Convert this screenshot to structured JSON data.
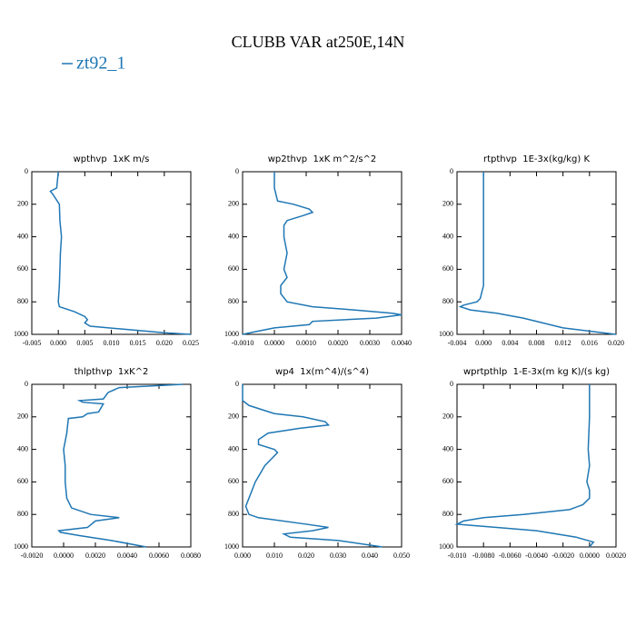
{
  "title": "CLUBB VAR at250E,14N",
  "legend": {
    "name": "zt92_1",
    "color": "#1f77b4"
  },
  "chart_data": [
    {
      "type": "line",
      "title": "wpthvp  1xK m/s",
      "color": "#1f77b4",
      "levels": [
        0,
        100,
        120,
        140,
        200,
        300,
        400,
        500,
        600,
        700,
        800,
        830,
        860,
        890,
        910,
        930,
        950,
        970,
        990,
        1000
      ],
      "values": [
        0,
        -0.0003,
        -0.0015,
        -0.001,
        0.0002,
        0.0003,
        0.0006,
        0.0004,
        0.0003,
        0.0002,
        0.0,
        0.0002,
        0.003,
        0.005,
        0.0055,
        0.005,
        0.006,
        0.013,
        0.02,
        0.025
      ],
      "xlim": [
        -0.005,
        0.025
      ],
      "xticks": [
        -0.005,
        {
          "value": 0,
          "label": "0.000"
        },
        0.005,
        {
          "value": 0.01,
          "label": "0.010"
        },
        0.015,
        {
          "value": 0.02,
          "label": "0.020"
        },
        0.025
      ],
      "ylim": [
        0,
        1000
      ],
      "yticks": [
        0,
        200,
        400,
        600,
        800,
        1000
      ],
      "y_inverted": true
    },
    {
      "type": "line",
      "title": "wp2thvp  1xK m^2/s^2",
      "color": "#1f77b4",
      "levels": [
        0,
        100,
        180,
        200,
        230,
        250,
        270,
        300,
        330,
        400,
        500,
        600,
        650,
        700,
        750,
        800,
        830,
        850,
        870,
        880,
        900,
        920,
        940,
        960,
        980,
        1000
      ],
      "values": [
        0,
        0,
        0.0001,
        0.0006,
        0.0011,
        0.0012,
        0.0009,
        0.0004,
        0.0003,
        0.0003,
        0.0004,
        0.0003,
        0.0004,
        0.0002,
        0.0002,
        0.0004,
        0.0012,
        0.0025,
        0.0037,
        0.004,
        0.0032,
        0.0012,
        0.0011,
        0.0,
        -0.0005,
        -0.001
      ],
      "xlim": [
        -0.001,
        0.004
      ],
      "xticks": [
        {
          "value": -0.001,
          "label": "-0.0010"
        },
        {
          "value": 0,
          "label": "0.0000"
        },
        {
          "value": 0.001,
          "label": "0.0010"
        },
        {
          "value": 0.002,
          "label": "0.0020"
        },
        {
          "value": 0.003,
          "label": "0.0030"
        },
        {
          "value": 0.004,
          "label": "0.0040"
        }
      ],
      "ylim": [
        0,
        1000
      ],
      "yticks": [
        0,
        200,
        400,
        600,
        800,
        1000
      ],
      "y_inverted": true
    },
    {
      "type": "line",
      "title": "rtpthvp  1E-3x(kg/kg) K",
      "color": "#1f77b4",
      "levels": [
        0,
        200,
        400,
        600,
        700,
        780,
        800,
        820,
        830,
        850,
        870,
        900,
        930,
        960,
        990,
        1000
      ],
      "values": [
        0,
        0,
        0,
        0,
        0.0,
        -0.0005,
        -0.001,
        -0.003,
        -0.0035,
        -0.002,
        0.002,
        0.006,
        0.009,
        0.012,
        0.018,
        0.02
      ],
      "xlim": [
        -0.004,
        0.02
      ],
      "xticks": [
        -0.004,
        {
          "value": 0,
          "label": "0.000"
        },
        0.004,
        0.008,
        0.012,
        0.016,
        {
          "value": 0.02,
          "label": "0.020"
        }
      ],
      "ylim": [
        0,
        1000
      ],
      "yticks": [
        0,
        200,
        400,
        600,
        800,
        1000
      ],
      "y_inverted": true
    },
    {
      "type": "line",
      "title": "thlpthvp  1xK^2",
      "color": "#1f77b4",
      "levels": [
        0,
        20,
        50,
        90,
        100,
        110,
        120,
        170,
        180,
        200,
        210,
        300,
        400,
        500,
        600,
        700,
        760,
        800,
        820,
        840,
        880,
        900,
        910,
        930,
        960,
        1000
      ],
      "values": [
        0.0075,
        0.0035,
        0.0028,
        0.0025,
        0.001,
        0.0012,
        0.0025,
        0.0022,
        0.0015,
        0.0012,
        0.0003,
        0.0002,
        0.0,
        0.0001,
        0.0001,
        0.0002,
        0.0005,
        0.0017,
        0.0035,
        0.002,
        0.0015,
        -0.0003,
        -0.0002,
        0.001,
        0.003,
        0.0052
      ],
      "xlim": [
        -0.002,
        0.008
      ],
      "xticks": [
        {
          "value": -0.002,
          "label": "-0.0020"
        },
        {
          "value": 0,
          "label": "0.0000"
        },
        {
          "value": 0.002,
          "label": "0.0020"
        },
        {
          "value": 0.004,
          "label": "0.0040"
        },
        {
          "value": 0.006,
          "label": "0.0060"
        },
        {
          "value": 0.008,
          "label": "0.0080"
        }
      ],
      "ylim": [
        0,
        1000
      ],
      "yticks": [
        0,
        200,
        400,
        600,
        800,
        1000
      ],
      "y_inverted": true
    },
    {
      "type": "line",
      "title": "wp4  1x(m^4)/(s^4)",
      "color": "#1f77b4",
      "levels": [
        0,
        100,
        130,
        180,
        200,
        230,
        250,
        270,
        300,
        340,
        370,
        400,
        420,
        500,
        600,
        700,
        750,
        800,
        820,
        860,
        880,
        900,
        920,
        940,
        960,
        1000
      ],
      "values": [
        0,
        0,
        0.002,
        0.01,
        0.019,
        0.026,
        0.027,
        0.018,
        0.008,
        0.005,
        0.005,
        0.01,
        0.011,
        0.007,
        0.004,
        0.002,
        0.001,
        0.002,
        0.005,
        0.02,
        0.027,
        0.022,
        0.013,
        0.015,
        0.03,
        0.044
      ],
      "xlim": [
        0,
        0.05
      ],
      "xticks": [
        {
          "value": 0,
          "label": "0.000"
        },
        {
          "value": 0.01,
          "label": "0.010"
        },
        {
          "value": 0.02,
          "label": "0.020"
        },
        {
          "value": 0.03,
          "label": "0.030"
        },
        {
          "value": 0.04,
          "label": "0.040"
        },
        {
          "value": 0.05,
          "label": "0.050"
        }
      ],
      "ylim": [
        0,
        1000
      ],
      "yticks": [
        0,
        200,
        400,
        600,
        800,
        1000
      ],
      "y_inverted": true
    },
    {
      "type": "line",
      "title": "wprtpthlp  1-E-3x(m kg K)/(s kg)",
      "color": "#1f77b4",
      "levels": [
        0,
        200,
        400,
        500,
        600,
        650,
        700,
        740,
        770,
        800,
        820,
        840,
        860,
        880,
        900,
        940,
        970,
        990,
        1000
      ],
      "values": [
        0,
        0,
        -0.0001,
        0,
        -0.0002,
        0,
        0,
        -0.0005,
        -0.0015,
        -0.005,
        -0.008,
        -0.0095,
        -0.01,
        -0.007,
        -0.004,
        -0.001,
        0.0003,
        0.0001,
        0
      ],
      "xlim": [
        -0.01,
        0.002
      ],
      "xticks": [
        {
          "value": -0.01,
          "label": "-0.010"
        },
        {
          "value": -0.008,
          "label": "-0.0080"
        },
        {
          "value": -0.006,
          "label": "-0.0060"
        },
        {
          "value": -0.004,
          "label": "-0.0040"
        },
        {
          "value": -0.002,
          "label": "-0.0020"
        },
        {
          "value": 0,
          "label": "0.0000"
        },
        {
          "value": 0.002,
          "label": "0.0020"
        }
      ],
      "ylim": [
        0,
        1000
      ],
      "yticks": [
        0,
        200,
        400,
        600,
        800,
        1000
      ],
      "y_inverted": true
    }
  ]
}
